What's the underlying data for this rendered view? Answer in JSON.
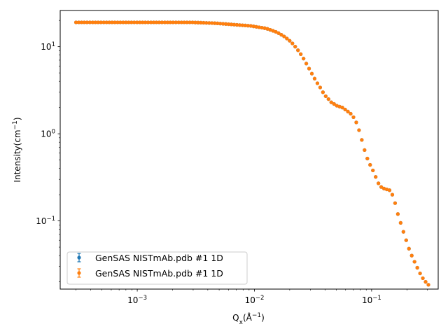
{
  "chart_data": {
    "type": "scatter",
    "x_scale": "log",
    "y_scale": "log",
    "xlim": [
      0.00022,
      0.37
    ],
    "ylim": [
      0.0165,
      26
    ],
    "xlabel": {
      "base": "Q",
      "sub": "x",
      "unit": "(Å",
      "sup": "−1",
      "close": ")"
    },
    "ylabel": {
      "base": "Intensity(cm",
      "sup": "−1",
      "close": ")"
    },
    "x_major_ticks": [
      {
        "value": 0.001,
        "base": "10",
        "exp": "−3"
      },
      {
        "value": 0.01,
        "base": "10",
        "exp": "−2"
      },
      {
        "value": 0.1,
        "base": "10",
        "exp": "−1"
      }
    ],
    "y_major_ticks": [
      {
        "value": 0.1,
        "base": "10",
        "exp": "−1"
      },
      {
        "value": 1,
        "base": "10",
        "exp": "0"
      },
      {
        "value": 10,
        "base": "10",
        "exp": "1"
      }
    ],
    "grid": false,
    "legend_position": "lower-left",
    "series": [
      {
        "name": "GenSAS NISTmAb.pdb  #1 1D",
        "color": "#1f77b4",
        "marker": "circle-errorbar"
      },
      {
        "name": "GenSAS NISTmAb.pdb  #1 1D",
        "color": "#ff7f0e",
        "marker": "circle-errorbar"
      }
    ],
    "x": [
      0.0003,
      0.0003168,
      0.0003346,
      0.0003533,
      0.0003731,
      0.000394,
      0.0004161,
      0.0004394,
      0.000464,
      0.00049,
      0.0005175,
      0.0005465,
      0.0005771,
      0.0006095,
      0.0006436,
      0.0006797,
      0.0007178,
      0.000758,
      0.0008005,
      0.0008454,
      0.0008927,
      0.0009428,
      0.0009956,
      0.0010514,
      0.0011103,
      0.0011725,
      0.0012382,
      0.0013076,
      0.0013809,
      0.0014583,
      0.0015401,
      0.0016264,
      0.0017175,
      0.0018138,
      0.0019154,
      0.0020227,
      0.0021361,
      0.0022558,
      0.0023822,
      0.0025157,
      0.0026567,
      0.0028056,
      0.0029628,
      0.0031288,
      0.0033042,
      0.0034893,
      0.0036849,
      0.0038914,
      0.0041095,
      0.0043398,
      0.0045829,
      0.0048398,
      0.005111,
      0.0053974,
      0.0057,
      0.0060194,
      0.0063567,
      0.006713,
      0.0070892,
      0.0074865,
      0.007906,
      0.0083491,
      0.008817,
      0.0093111,
      0.0098329,
      0.010384,
      0.010966,
      0.01158,
      0.012229,
      0.012915,
      0.013638,
      0.014403,
      0.01521,
      0.016062,
      0.016962,
      0.017913,
      0.018917,
      0.019977,
      0.021096,
      0.022279,
      0.023527,
      0.024846,
      0.026238,
      0.027708,
      0.029261,
      0.030901,
      0.032633,
      0.034462,
      0.036393,
      0.038432,
      0.040586,
      0.042861,
      0.045263,
      0.047799,
      0.050478,
      0.053307,
      0.056294,
      0.059449,
      0.062781,
      0.066299,
      0.070014,
      0.073938,
      0.078082,
      0.082457,
      0.087078,
      0.091958,
      0.097112,
      0.10255,
      0.1083,
      0.11437,
      0.12078,
      0.12755,
      0.13469,
      0.14224,
      0.15021,
      0.15863,
      0.16752,
      0.17691,
      0.18682,
      0.19729,
      0.20835,
      0.22002,
      0.23235,
      0.24537,
      0.25913,
      0.27365,
      0.28898,
      0.30518
    ],
    "values": [
      19.0,
      19.0,
      19.0,
      19.0,
      19.0,
      19.0,
      19.0,
      19.0,
      19.0,
      19.0,
      19.0,
      19.0,
      19.0,
      19.0,
      19.0,
      19.0,
      19.0,
      19.0,
      19.0,
      19.0,
      19.0,
      19.0,
      19.0,
      19.0,
      19.0,
      19.0,
      19.0,
      19.0,
      19.0,
      19.0,
      19.0,
      19.0,
      19.0,
      19.0,
      19.0,
      19.0,
      19.0,
      19.0,
      19.0,
      19.0,
      19.0,
      19.0,
      19.0,
      18.95,
      18.9,
      18.85,
      18.8,
      18.75,
      18.7,
      18.65,
      18.6,
      18.5,
      18.4,
      18.3,
      18.2,
      18.1,
      18.0,
      17.9,
      17.8,
      17.7,
      17.6,
      17.5,
      17.4,
      17.3,
      17.1,
      16.9,
      16.7,
      16.5,
      16.3,
      16.0,
      15.6,
      15.2,
      14.8,
      14.3,
      13.7,
      13.1,
      12.4,
      11.7,
      10.9,
      10.0,
      9.1,
      8.2,
      7.3,
      6.4,
      5.6,
      4.9,
      4.3,
      3.8,
      3.4,
      3.0,
      2.7,
      2.5,
      2.3,
      2.2,
      2.1,
      2.05,
      2.0,
      1.9,
      1.8,
      1.7,
      1.55,
      1.35,
      1.1,
      0.85,
      0.65,
      0.52,
      0.44,
      0.38,
      0.32,
      0.27,
      0.245,
      0.235,
      0.23,
      0.225,
      0.2,
      0.16,
      0.12,
      0.095,
      0.075,
      0.06,
      0.048,
      0.04,
      0.034,
      0.029,
      0.025,
      0.022,
      0.02,
      0.0185
    ]
  }
}
